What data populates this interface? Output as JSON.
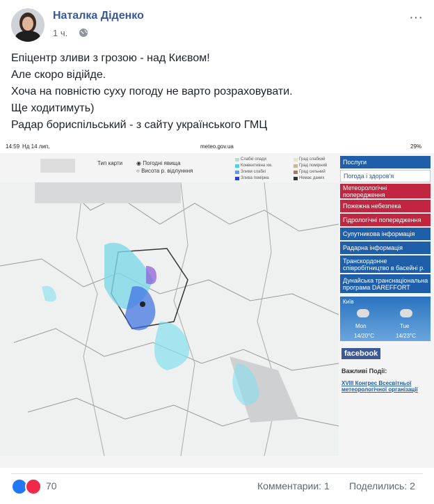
{
  "post": {
    "author": "Наталка Діденко",
    "time": "1 ч.",
    "text": [
      "Епіцентр зливи з грозою - над Києвом!",
      "Але скоро відійде.",
      "Хоча на повністю суху погоду не варто розраховувати.",
      "Ще ходитимуть)",
      "Радар бориспільський - з сайту українського ГМЦ"
    ]
  },
  "screenshot": {
    "status": {
      "time": "14:59",
      "date": "Нд 14 лип.",
      "url": "meteo.gov.ua",
      "battery": "29%"
    },
    "map_type": {
      "label": "Тип карти",
      "options": [
        "Погодні явища",
        "Висота р. відлунння"
      ]
    },
    "legend": [
      "Слабкі опади",
      "Конвективна хм.",
      "Зливи слабкі",
      "Злива помірна",
      "Град слабкий",
      "Град помірний",
      "Град сильний",
      "Немає даних"
    ],
    "menu": [
      "Послуги",
      "Погода і здоров'я",
      "Метеорологічні попередження",
      "Пожежна небезпека",
      "Гідрологічні попередження",
      "Супутникова інформація",
      "Радарна інформація",
      "Транскордонне співробітництво в басейні р.",
      "Дунайська транснаціональна програма DAREFFORT"
    ],
    "weather": {
      "city": "Київ",
      "days": [
        {
          "day": "Mon",
          "temp": "14/20°C"
        },
        {
          "day": "Tue",
          "temp": "14/23°C"
        }
      ]
    },
    "facebook": "facebook",
    "events_title": "Важливі Події:",
    "event": "XVIII Конгрес Всесвітньої метеорологічної організації"
  },
  "footer": {
    "reactions": "70",
    "comments": "Комментарии: 1",
    "shares": "Поделились: 2"
  }
}
